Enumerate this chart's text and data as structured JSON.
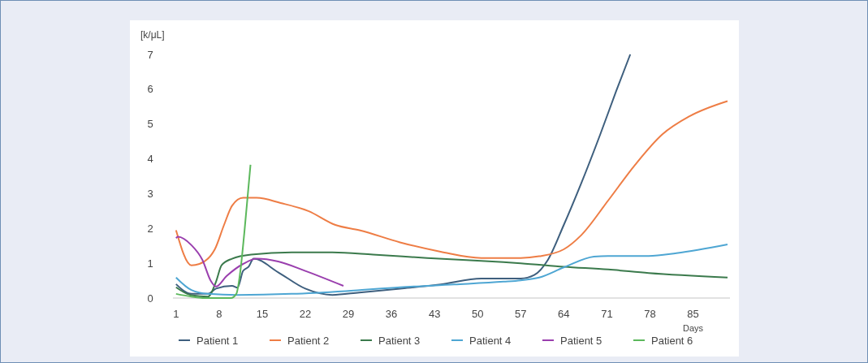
{
  "chart_data": {
    "type": "line",
    "xlabel": "Days",
    "ylabel": "[k/μL]",
    "xlim": [
      0.5,
      91
    ],
    "xticks": [
      1,
      8,
      15,
      22,
      29,
      36,
      43,
      50,
      57,
      64,
      71,
      78,
      85
    ],
    "ylim": [
      0,
      7
    ],
    "yticks": [
      0,
      1,
      2,
      3,
      4,
      5,
      6,
      7
    ],
    "grid": false,
    "legend": "bottom",
    "marker": "none",
    "line_style": "solid",
    "series": [
      {
        "name": "Patient 1",
        "color": "#3e5f7e",
        "x": [
          1,
          3.5,
          6.2,
          7.5,
          10.1,
          11,
          11.9,
          12.8,
          13.6,
          17.6,
          22,
          26.4,
          30.8,
          37.4,
          44,
          50.6,
          57,
          59.2,
          61.4,
          64,
          66.8,
          69.9,
          72.5,
          74.8
        ],
        "values": [
          0.4,
          0.12,
          0.12,
          0.27,
          0.35,
          0.3,
          0.78,
          0.9,
          1.13,
          0.74,
          0.27,
          0.09,
          0.16,
          0.27,
          0.39,
          0.56,
          0.56,
          0.66,
          1.09,
          2.1,
          3.28,
          4.69,
          5.94,
          7
        ]
      },
      {
        "name": "Patient 2",
        "color": "#ee7d45",
        "x": [
          1,
          3.5,
          4.8,
          7.3,
          8.8,
          10.1,
          11.9,
          14.1,
          18,
          22.5,
          26.9,
          30.8,
          37.4,
          44,
          50.6,
          57,
          60,
          64,
          66.8,
          71.2,
          75.6,
          80,
          84.5,
          90.6
        ],
        "values": [
          1.95,
          0.94,
          0.98,
          1.4,
          2.1,
          2.65,
          2.88,
          2.88,
          2.73,
          2.5,
          2.1,
          1.95,
          1.6,
          1.33,
          1.15,
          1.15,
          1.2,
          1.4,
          1.8,
          2.8,
          3.83,
          4.7,
          5.23,
          5.66
        ]
      },
      {
        "name": "Patient 3",
        "color": "#3b7a4c",
        "x": [
          1,
          3.5,
          6.2,
          7.5,
          8.4,
          10.1,
          13.2,
          19.8,
          26.4,
          33,
          41.8,
          54.2,
          57,
          64,
          71.2,
          77.8,
          90.6
        ],
        "values": [
          0.31,
          0.08,
          0.04,
          0.47,
          0.94,
          1.13,
          1.25,
          1.31,
          1.31,
          1.25,
          1.15,
          1.03,
          1,
          0.9,
          0.82,
          0.72,
          0.59
        ]
      },
      {
        "name": "Patient 4",
        "color": "#4ea6d3",
        "x": [
          1,
          3.5,
          6.2,
          11,
          19.8,
          28.6,
          37.4,
          46.2,
          54.2,
          57,
          60,
          64,
          68.9,
          71.2,
          77.8,
          82.3,
          90.6
        ],
        "values": [
          0.59,
          0.23,
          0.12,
          0.09,
          0.12,
          0.2,
          0.31,
          0.39,
          0.47,
          0.51,
          0.59,
          0.88,
          1.19,
          1.21,
          1.21,
          1.29,
          1.54
        ]
      },
      {
        "name": "Patient 5",
        "color": "#9a3fae",
        "x": [
          1,
          1.3,
          3.5,
          5.3,
          6.6,
          7.5,
          9.2,
          11.9,
          14.1,
          17.6,
          22,
          28.2
        ],
        "values": [
          1.72,
          1.76,
          1.52,
          1.09,
          0.51,
          0.33,
          0.63,
          0.98,
          1.13,
          1.05,
          0.78,
          0.35
        ]
      },
      {
        "name": "Patient 6",
        "color": "#5cb85c",
        "x": [
          1,
          3.5,
          5.3,
          8,
          9.9,
          10.8,
          11.4,
          12.1,
          13.1
        ],
        "values": [
          0.12,
          0.04,
          0,
          0,
          0,
          0.12,
          0.7,
          1.88,
          3.83
        ]
      }
    ]
  }
}
